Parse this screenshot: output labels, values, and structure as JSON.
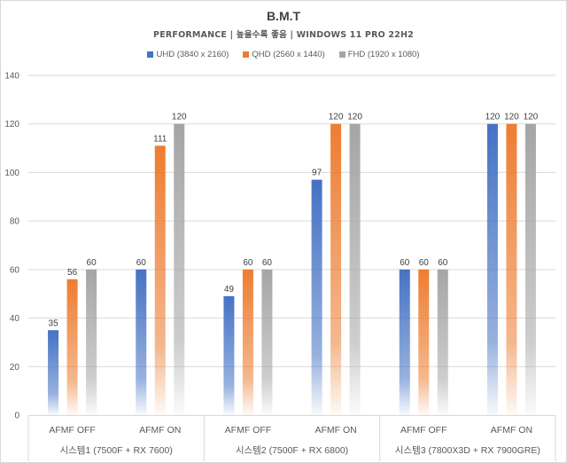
{
  "chart_data": {
    "type": "bar",
    "title": "B.M.T",
    "subtitle": "PERFORMANCE | 높을수록 좋음 | WINDOWS 11 PRO 22H2",
    "xlabel": "",
    "ylabel": "",
    "ylim": [
      0,
      140
    ],
    "yticks": [
      "0",
      "20",
      "40",
      "60",
      "80",
      "100",
      "120",
      "140"
    ],
    "grid": true,
    "legend_position": "top",
    "categories": [
      "AFMF OFF",
      "AFMF ON",
      "AFMF OFF",
      "AFMF ON",
      "AFMF OFF",
      "AFMF ON"
    ],
    "groups": [
      "시스템1 (7500F + RX 7600)",
      "시스템2 (7500F + RX 6800)",
      "시스템3 (7800X3D + RX 7900GRE)"
    ],
    "series": [
      {
        "name": "UHD (3840 x 2160)",
        "color": "#4472c4",
        "values": [
          35,
          60,
          49,
          97,
          60,
          120
        ]
      },
      {
        "name": "QHD (2560 x 1440)",
        "color": "#ed7d31",
        "values": [
          56,
          111,
          60,
          120,
          60,
          120
        ]
      },
      {
        "name": "FHD (1920 x 1080)",
        "color": "#a5a5a5",
        "values": [
          60,
          120,
          60,
          120,
          60,
          120
        ]
      }
    ]
  }
}
